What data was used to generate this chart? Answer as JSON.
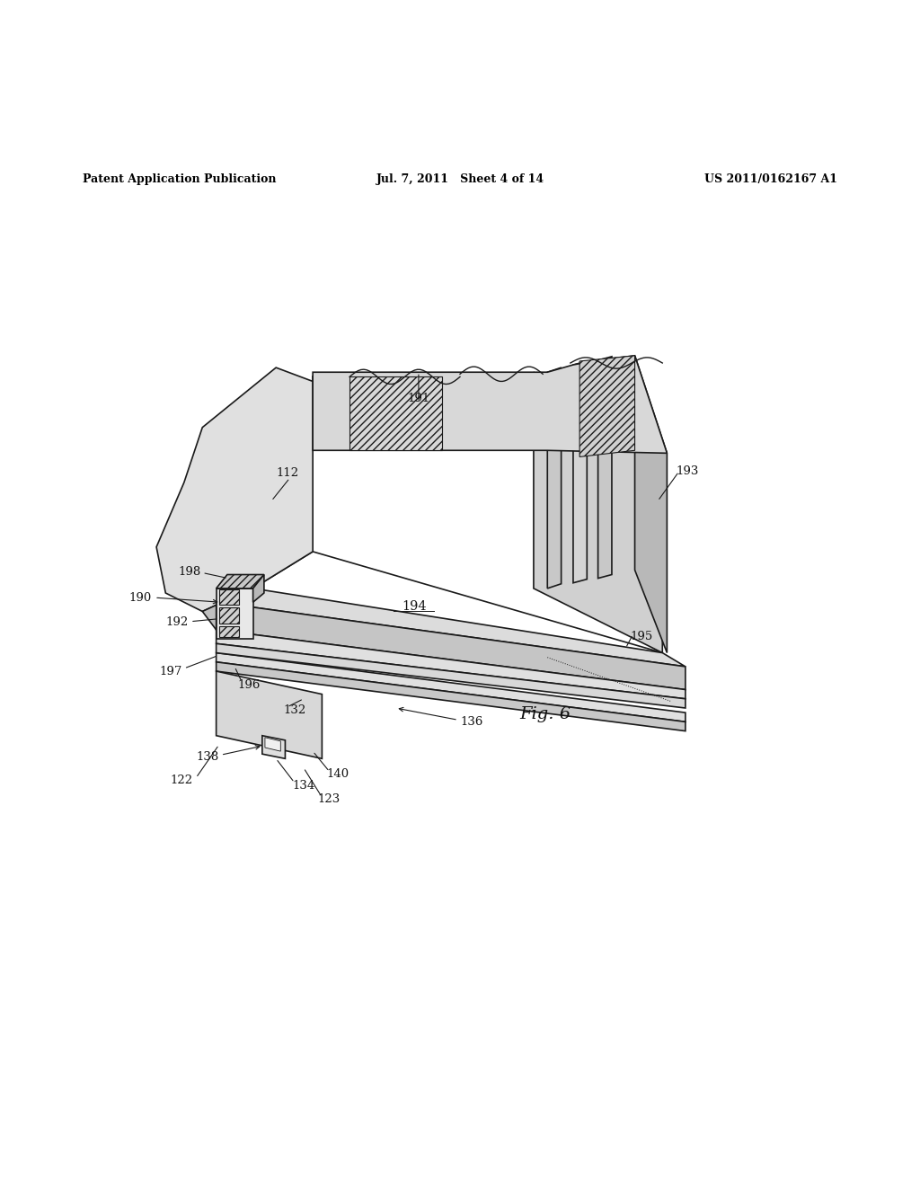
{
  "background_color": "#ffffff",
  "header_left": "Patent Application Publication",
  "header_center": "Jul. 7, 2011   Sheet 4 of 14",
  "header_right": "US 2011/0162167 A1",
  "fig_label": "Fig. 6",
  "line_color": "#1a1a1a",
  "lw": 1.2
}
